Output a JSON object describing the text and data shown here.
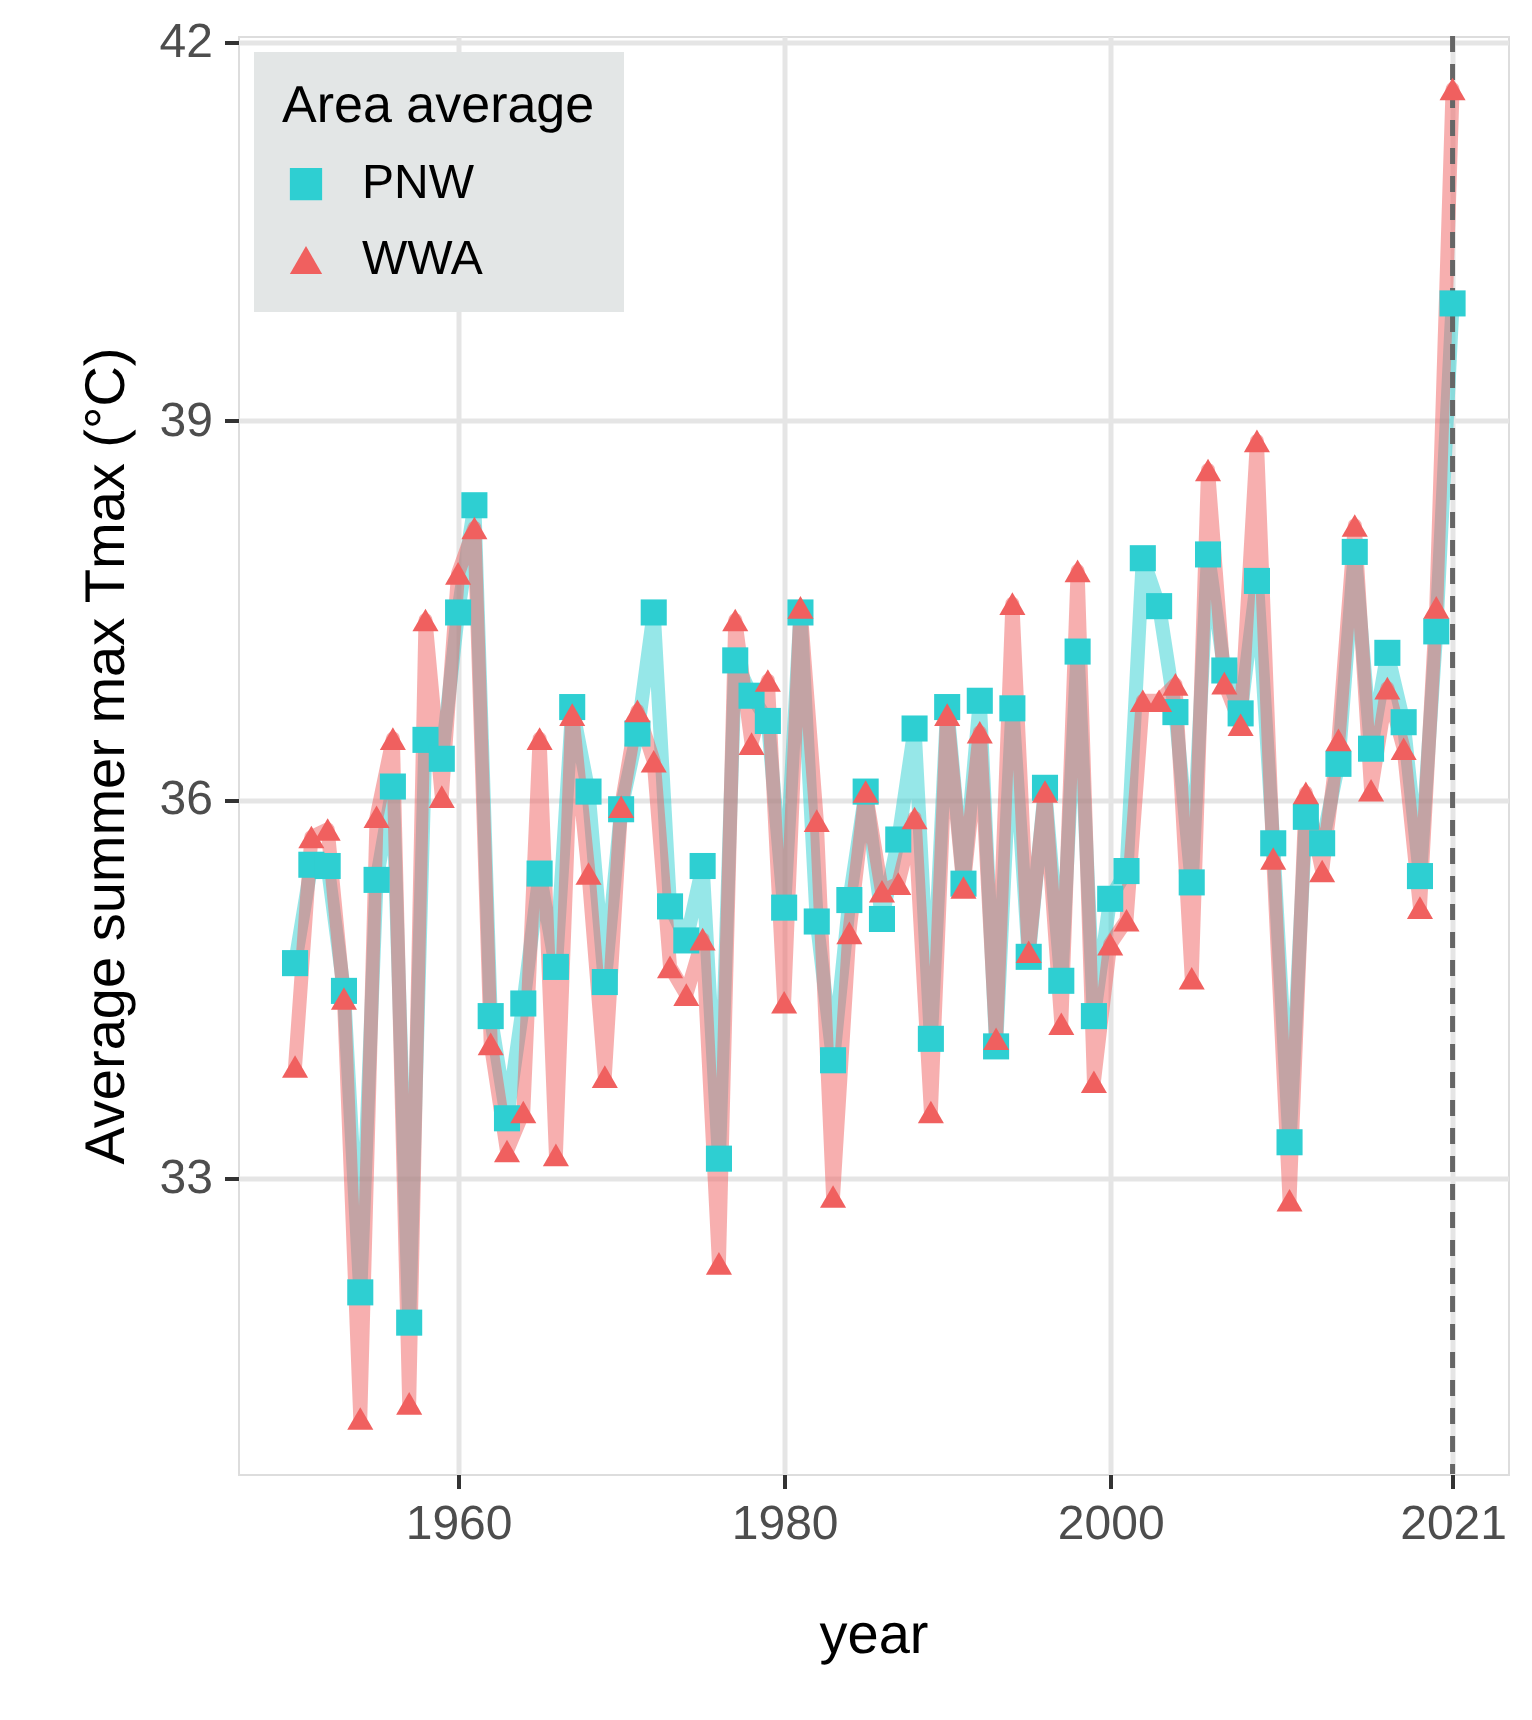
{
  "chart_data": {
    "type": "line",
    "xlabel": "year",
    "ylabel": "Average summer max Tmax (°C)",
    "legend_title": "Area average",
    "x": [
      1950,
      1951,
      1952,
      1953,
      1954,
      1955,
      1956,
      1957,
      1958,
      1959,
      1960,
      1961,
      1962,
      1963,
      1964,
      1965,
      1966,
      1967,
      1968,
      1969,
      1970,
      1971,
      1972,
      1973,
      1974,
      1975,
      1976,
      1977,
      1978,
      1979,
      1980,
      1981,
      1982,
      1983,
      1984,
      1985,
      1986,
      1987,
      1988,
      1989,
      1990,
      1991,
      1992,
      1993,
      1994,
      1995,
      1996,
      1997,
      1998,
      1999,
      2000,
      2001,
      2002,
      2003,
      2004,
      2005,
      2006,
      2007,
      2008,
      2009,
      2010,
      2011,
      2012,
      2013,
      2014,
      2015,
      2016,
      2017,
      2018,
      2019,
      2020,
      2021
    ],
    "series": [
      {
        "name": "PNW",
        "color": "#2ecfd2",
        "marker": "square",
        "values": [
          34.7,
          35.48,
          35.47,
          34.48,
          32.09,
          35.36,
          36.1,
          31.85,
          36.47,
          36.32,
          37.48,
          38.33,
          34.28,
          33.47,
          34.38,
          35.41,
          34.67,
          36.73,
          36.06,
          34.55,
          35.92,
          36.52,
          37.48,
          35.15,
          34.88,
          35.47,
          33.15,
          37.1,
          36.82,
          36.62,
          35.14,
          37.48,
          35.03,
          33.93,
          35.2,
          36.06,
          35.05,
          35.68,
          36.56,
          34.1,
          36.73,
          35.33,
          36.78,
          34.04,
          36.72,
          34.75,
          36.09,
          34.56,
          37.17,
          34.28,
          35.21,
          35.43,
          37.91,
          37.53,
          36.69,
          35.34,
          37.94,
          37.02,
          36.68,
          37.73,
          35.65,
          33.28,
          35.86,
          35.65,
          36.28,
          37.96,
          36.4,
          37.16,
          36.61,
          35.39,
          37.33,
          39.93
        ]
      },
      {
        "name": "WWA",
        "color": "#f0605f",
        "marker": "triangle",
        "values": [
          33.88,
          35.7,
          35.76,
          34.42,
          31.09,
          35.86,
          36.48,
          31.21,
          37.42,
          36.02,
          37.79,
          38.15,
          34.06,
          33.21,
          33.52,
          36.48,
          33.18,
          36.67,
          35.41,
          33.8,
          35.94,
          36.7,
          36.3,
          34.67,
          34.45,
          34.89,
          32.32,
          37.42,
          36.44,
          36.94,
          34.39,
          37.52,
          35.83,
          32.85,
          34.94,
          36.06,
          35.27,
          35.33,
          35.85,
          33.52,
          36.67,
          35.3,
          36.53,
          34.1,
          37.55,
          34.79,
          36.06,
          34.22,
          37.81,
          33.76,
          34.85,
          35.04,
          36.78,
          36.78,
          36.91,
          34.58,
          38.61,
          36.92,
          36.59,
          38.84,
          35.53,
          32.82,
          36.05,
          35.43,
          36.47,
          38.17,
          36.07,
          36.88,
          36.4,
          35.14,
          37.52,
          41.63
        ]
      }
    ],
    "xlim": [
      1946.5,
      2024.4
    ],
    "xticks": [
      1960,
      1980,
      2000,
      2021
    ],
    "ylim": [
      30.65,
      42.05
    ],
    "yticks": [
      33,
      36,
      39,
      42
    ],
    "ref_lines": [
      {
        "axis": "x",
        "value": 2021,
        "color": "#666666",
        "line_style": "dashed"
      }
    ],
    "grid": true,
    "legend": "top left",
    "line_style": "solid"
  }
}
